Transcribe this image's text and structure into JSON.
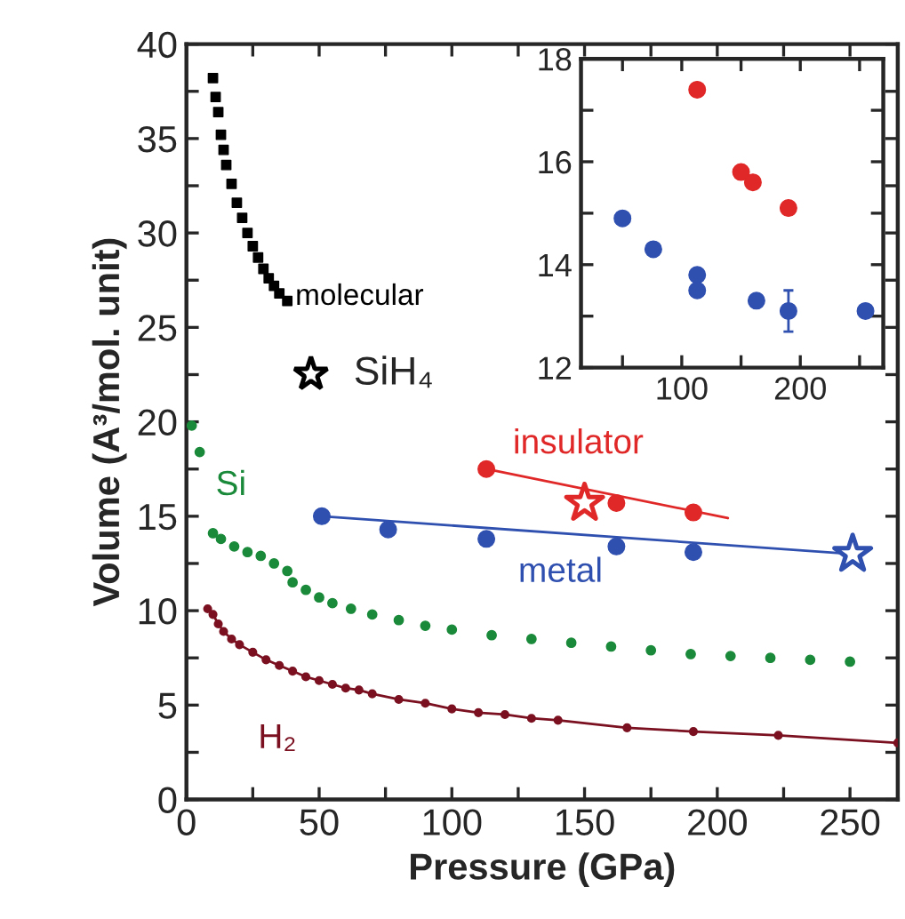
{
  "chart_data": [
    {
      "type": "scatter",
      "xlabel": "Pressure (GPa)",
      "ylabel": "Volume (A³/mol. unit)",
      "xlim": [
        0,
        268
      ],
      "ylim": [
        0,
        40
      ],
      "xticks": [
        0,
        {
          "value": 25,
          "label": null
        },
        50,
        {
          "value": 75,
          "label": null
        },
        100,
        {
          "value": 125,
          "label": null
        },
        150,
        {
          "value": 175,
          "label": null
        },
        200,
        {
          "value": 225,
          "label": null
        },
        250
      ],
      "yticks": [
        0,
        {
          "value": 2.5,
          "label": null
        },
        5,
        {
          "value": 7.5,
          "label": null
        },
        10,
        {
          "value": 12.5,
          "label": null
        },
        15,
        {
          "value": 17.5,
          "label": null
        },
        20,
        {
          "value": 22.5,
          "label": null
        },
        25,
        {
          "value": 27.5,
          "label": null
        },
        30,
        {
          "value": 32.5,
          "label": null
        },
        35,
        {
          "value": 37.5,
          "label": null
        },
        40
      ],
      "grid": false,
      "legend": false,
      "annotations": [
        "SiH₄"
      ],
      "series": [
        {
          "name": "molecular",
          "marker": "square",
          "color": "#000000",
          "x": [
            10,
            11,
            12,
            13,
            14,
            15,
            17,
            19,
            21,
            23,
            25,
            27,
            29,
            31,
            33,
            35,
            38
          ],
          "values": [
            38.2,
            37.2,
            36.4,
            35.2,
            34.4,
            33.6,
            32.6,
            31.6,
            30.8,
            30.0,
            29.3,
            28.7,
            28.1,
            27.6,
            27.2,
            26.8,
            26.4
          ]
        },
        {
          "name": "Si",
          "marker": "circle",
          "color": "#1a8a3a",
          "x": [
            2,
            5,
            10,
            13,
            18,
            23,
            28,
            33,
            38,
            40,
            45,
            50,
            55,
            62,
            70,
            80,
            90,
            100,
            115,
            130,
            145,
            160,
            175,
            190,
            205,
            220,
            235,
            250
          ],
          "values": [
            19.8,
            18.4,
            14.1,
            13.8,
            13.4,
            13.1,
            12.9,
            12.5,
            12.1,
            11.5,
            11.1,
            10.7,
            10.4,
            10.1,
            9.8,
            9.5,
            9.2,
            9.0,
            8.7,
            8.5,
            8.3,
            8.1,
            7.9,
            7.7,
            7.6,
            7.5,
            7.4,
            7.3
          ]
        },
        {
          "name": "H₂",
          "type": "line",
          "marker": "circle",
          "color": "#7a1020",
          "x": [
            8,
            10,
            12,
            14,
            17,
            20,
            25,
            30,
            35,
            40,
            45,
            50,
            55,
            60,
            65,
            70,
            80,
            90,
            100,
            110,
            120,
            130,
            140,
            166,
            191,
            223,
            268
          ],
          "values": [
            10.1,
            9.8,
            9.3,
            8.9,
            8.5,
            8.2,
            7.8,
            7.4,
            7.1,
            6.8,
            6.5,
            6.3,
            6.1,
            5.9,
            5.8,
            5.6,
            5.3,
            5.1,
            4.8,
            4.6,
            4.5,
            4.3,
            4.2,
            3.8,
            3.6,
            3.4,
            3.0
          ]
        },
        {
          "type": "line",
          "marker": "none",
          "color": "#e02828",
          "x": [
            113,
            204
          ],
          "values": [
            17.5,
            14.9
          ]
        },
        {
          "type": "line",
          "marker": "none",
          "color": "#3050b0",
          "x": [
            51,
            251
          ],
          "values": [
            15.0,
            13.0
          ]
        },
        {
          "name": "insulator",
          "marker": "circle",
          "color": "#e02828",
          "x": [
            113,
            162,
            191
          ],
          "values": [
            17.5,
            15.7,
            15.2
          ]
        },
        {
          "name": "metal",
          "marker": "circle",
          "color": "#3050b0",
          "x": [
            51,
            76,
            113,
            162,
            191
          ],
          "values": [
            15.0,
            14.3,
            13.8,
            13.4,
            13.1
          ]
        },
        {
          "marker": "star",
          "colors": [
            "#e02828",
            "#3050b0"
          ],
          "x": [
            150,
            251
          ],
          "values": [
            15.7,
            13.0
          ]
        }
      ]
    },
    {
      "type": "scatter",
      "xlim": [
        15,
        270
      ],
      "ylim": [
        12,
        18
      ],
      "xticks": [
        {
          "value": 50,
          "label": null
        },
        100,
        {
          "value": 150,
          "label": null
        },
        200,
        {
          "value": 250,
          "label": null
        }
      ],
      "yticks": [
        12,
        {
          "value": 13,
          "label": null
        },
        14,
        {
          "value": 15,
          "label": null
        },
        16,
        {
          "value": 17,
          "label": null
        },
        18
      ],
      "grid": false,
      "legend": false,
      "series": [
        {
          "marker": "circle",
          "color": "#e02828",
          "x": [
            113,
            150,
            160,
            190
          ],
          "values": [
            17.4,
            15.8,
            15.6,
            15.1
          ]
        },
        {
          "marker": "circle",
          "color": "#3050b0",
          "x": [
            50,
            76,
            113,
            113,
            163,
            190,
            255
          ],
          "values": [
            14.9,
            14.3,
            13.8,
            13.5,
            13.3,
            13.1,
            13.1
          ],
          "errors": [
            null,
            null,
            null,
            null,
            null,
            0.4,
            null
          ]
        }
      ]
    }
  ]
}
